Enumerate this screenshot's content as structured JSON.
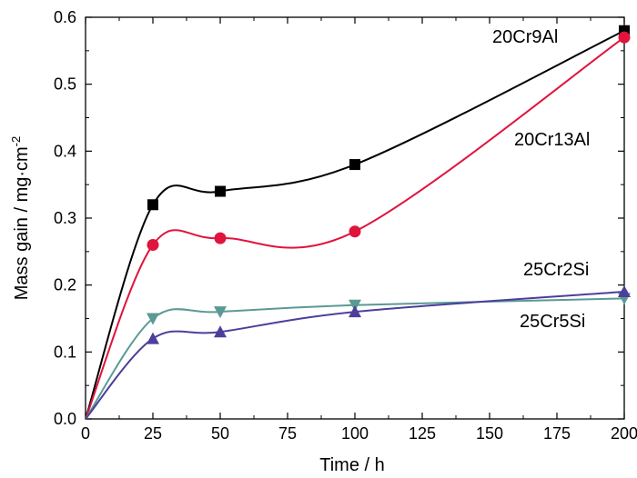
{
  "chart_data": {
    "type": "line",
    "xlabel": "Time / h",
    "ylabel_main": "Mass gain / mg·cm",
    "ylabel_superscript": "-2",
    "xlim": [
      0,
      200
    ],
    "ylim": [
      0,
      0.6
    ],
    "xticks": [
      0,
      25,
      50,
      75,
      100,
      125,
      150,
      175,
      200
    ],
    "yticks": [
      0.0,
      0.1,
      0.2,
      0.3,
      0.4,
      0.5,
      0.6
    ],
    "ytick_labels": [
      "0.0",
      "0.1",
      "0.2",
      "0.3",
      "0.4",
      "0.5",
      "0.6"
    ],
    "xtick_labels": [
      "0",
      "25",
      "50",
      "75",
      "100",
      "125",
      "150",
      "175",
      "200"
    ],
    "grid": false,
    "series": [
      {
        "name": "20Cr9Al",
        "color": "#000000",
        "marker": "square",
        "x": [
          0,
          25,
          50,
          100,
          200
        ],
        "values": [
          0.0,
          0.32,
          0.34,
          0.38,
          0.58
        ]
      },
      {
        "name": "20Cr13Al",
        "color": "#e0143c",
        "marker": "circle",
        "x": [
          0,
          25,
          50,
          100,
          200
        ],
        "values": [
          0.0,
          0.26,
          0.27,
          0.28,
          0.57
        ]
      },
      {
        "name": "25Cr2Si",
        "color": "#5b9a94",
        "marker": "triangle-down",
        "x": [
          0,
          25,
          50,
          100,
          200
        ],
        "values": [
          0.0,
          0.15,
          0.16,
          0.17,
          0.18
        ]
      },
      {
        "name": "25Cr5Si",
        "color": "#4b3f9a",
        "marker": "triangle-up",
        "x": [
          0,
          25,
          50,
          100,
          200
        ],
        "values": [
          0.0,
          0.12,
          0.13,
          0.16,
          0.19
        ]
      }
    ]
  }
}
